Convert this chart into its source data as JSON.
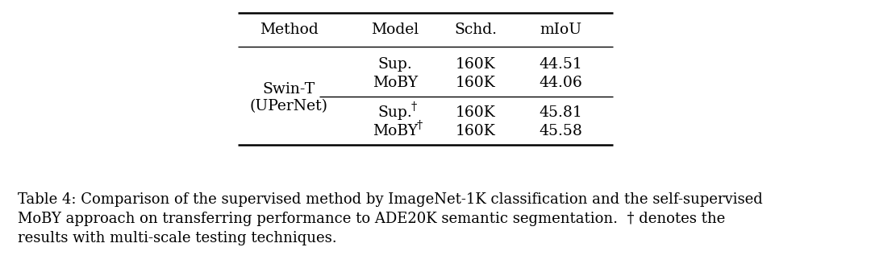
{
  "bg_color": "#ffffff",
  "table_header": [
    "Method",
    "Model",
    "Schd.",
    "mIoU"
  ],
  "col1_method_line1": "Swin-T",
  "col1_method_line2": "(UPerNet)",
  "rows": [
    {
      "model": "Sup.",
      "schd": "160K",
      "miou": "44.51"
    },
    {
      "model": "MoBY",
      "schd": "160K",
      "miou": "44.06"
    },
    {
      "model": "Sup.",
      "dagger": true,
      "schd": "160K",
      "miou": "45.81"
    },
    {
      "model": "MoBY",
      "dagger": true,
      "schd": "160K",
      "miou": "45.58"
    }
  ],
  "caption_line1": "Table 4: Comparison of the supervised method by ImageNet-1K classification and the self-supervised",
  "caption_line2": "MoBY approach on transferring performance to ADE20K semantic segmentation.  † denotes the",
  "caption_line3": "results with multi-scale testing techniques.",
  "font_size_table": 13.5,
  "font_size_caption": 13.0
}
